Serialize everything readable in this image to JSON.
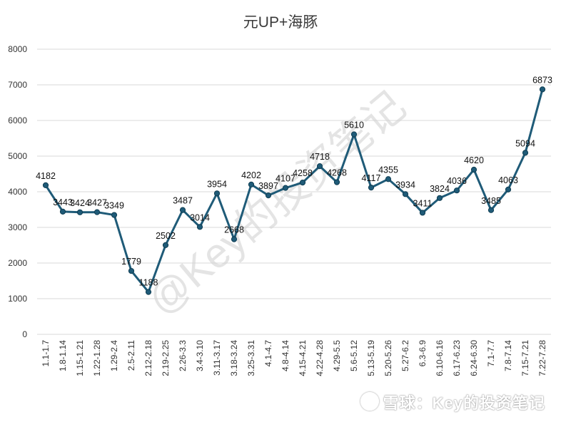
{
  "chart_data": {
    "type": "line",
    "title": "元UP+海豚",
    "categories": [
      "1.1-1.7",
      "1.8-1.14",
      "1.15-1.21",
      "1.22-1.28",
      "1.29-2.4",
      "2.5-2.11",
      "2.12-2.18",
      "2.19-2.25",
      "2.26-3.3",
      "3.4-3.10",
      "3.11-3.17",
      "3.18-3.24",
      "3.25-3.31",
      "4.1-4.7",
      "4.8-4.14",
      "4.15-4.21",
      "4.22-4.28",
      "4.29-5.5",
      "5.6-5.12",
      "5.13-5.19",
      "5.20-5.26",
      "5.27-6.2",
      "6.3-6.9",
      "6.10-6.16",
      "6.17-6.23",
      "6.24-6.30",
      "7.1-7.7",
      "7.8-7.14",
      "7.15-7.21",
      "7.22-7.28"
    ],
    "series": [
      {
        "values": [
          4182,
          3443,
          3424,
          3427,
          3349,
          1779,
          1188,
          2502,
          3487,
          3014,
          3954,
          2668,
          4202,
          3897,
          4107,
          4258,
          4718,
          4268,
          5610,
          4117,
          4355,
          3934,
          3411,
          3824,
          4036,
          4620,
          3485,
          4063,
          5094,
          6873
        ]
      }
    ],
    "ylim": [
      0,
      8000
    ],
    "yticks": [
      0,
      1000,
      2000,
      3000,
      4000,
      5000,
      6000,
      7000,
      8000
    ],
    "grid": true,
    "legend": "none",
    "line_color": "#1f5b78",
    "marker_color": "#1f5b78"
  },
  "watermarks": {
    "diagonal": "@Key的投资笔记",
    "bottom": "雪球：Key的投资笔记"
  }
}
